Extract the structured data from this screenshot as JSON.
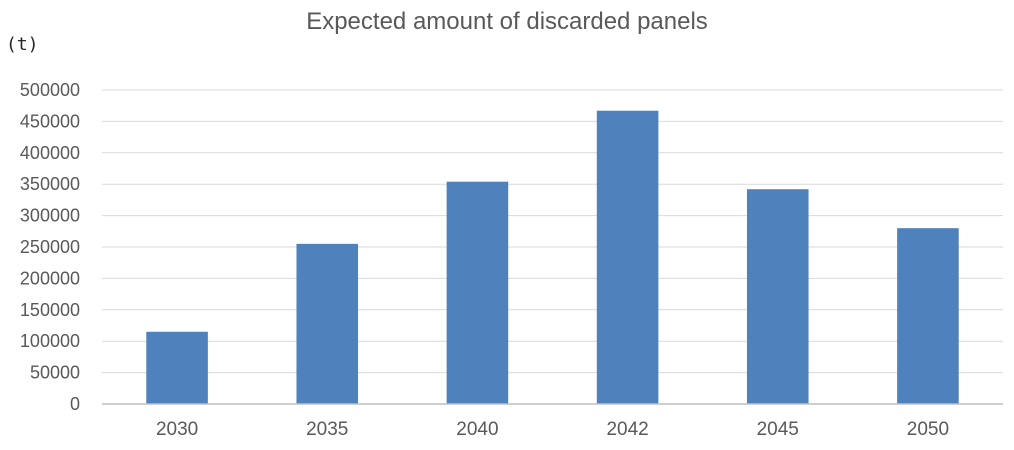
{
  "chart_data": {
    "type": "bar",
    "title": "Expected amount of discarded panels",
    "unit_label": "(t)",
    "xlabel": "",
    "ylabel": "",
    "categories": [
      "2030",
      "2035",
      "2040",
      "2042",
      "2045",
      "2050"
    ],
    "series": [
      {
        "values": [
          115000,
          255000,
          354000,
          467000,
          342000,
          280000
        ]
      }
    ],
    "y_ticks": [
      "0",
      "50000",
      "100000",
      "150000",
      "200000",
      "250000",
      "300000",
      "350000",
      "400000",
      "450000",
      "500000"
    ],
    "ylim": [
      0,
      500000
    ],
    "grid": true,
    "legend": "none",
    "colors": {
      "bar": "#4F81BD",
      "grid": "#D9D9D9",
      "axis": "#BFBFBF",
      "tick_text": "#595959",
      "title": "#595959"
    }
  }
}
